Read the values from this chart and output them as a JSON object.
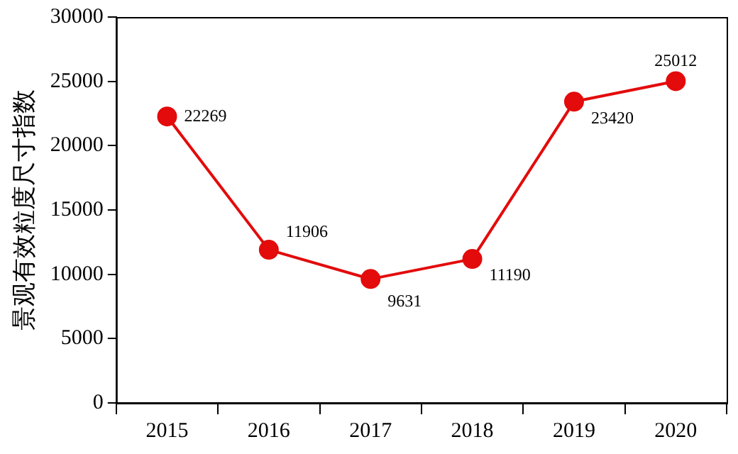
{
  "chart_data": {
    "type": "line",
    "ylabel": "景观有效粒度尺寸指数",
    "categories": [
      "2015",
      "2016",
      "2017",
      "2018",
      "2019",
      "2020"
    ],
    "series": [
      {
        "color": "#e30b0b",
        "values": [
          22269,
          11906,
          9631,
          11190,
          23420,
          25012
        ]
      }
    ],
    "ylim": [
      0,
      30000
    ],
    "yticks": [
      0,
      5000,
      10000,
      15000,
      20000,
      25000,
      30000
    ],
    "grid": false,
    "legend": false,
    "marker": "circle",
    "line_style": "solid",
    "data_labels": true
  }
}
